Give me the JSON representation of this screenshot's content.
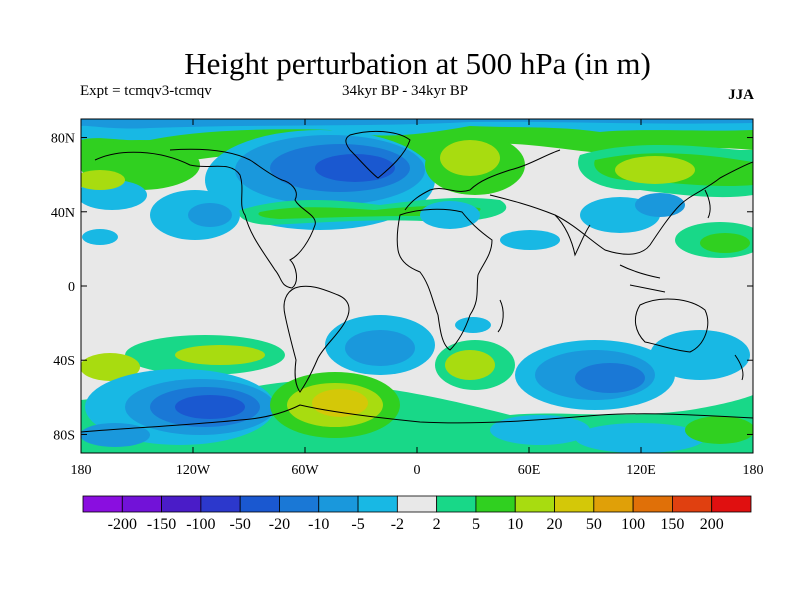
{
  "title": "Height perturbation at 500 hPa (in m)",
  "subtitle_left": "Expt = tcmqv3-tcmqv",
  "subtitle_mid": "34kyr BP - 34kyr BP",
  "subtitle_right": "JJA",
  "map": {
    "lon_range": [
      -180,
      180
    ],
    "lat_range": [
      -90,
      90
    ],
    "lat_ticks": [
      {
        "value": 80,
        "label": "80N"
      },
      {
        "value": 40,
        "label": "40N"
      },
      {
        "value": 0,
        "label": "0"
      },
      {
        "value": -40,
        "label": "40S"
      },
      {
        "value": -80,
        "label": "80S"
      }
    ],
    "lon_ticks": [
      {
        "value": -180,
        "label": "180"
      },
      {
        "value": -120,
        "label": "120W"
      },
      {
        "value": -60,
        "label": "60W"
      },
      {
        "value": 0,
        "label": "0"
      },
      {
        "value": 60,
        "label": "60E"
      },
      {
        "value": 120,
        "label": "120E"
      },
      {
        "value": 180,
        "label": "180"
      }
    ],
    "background_color": "#e8e8e8"
  },
  "colorbar": {
    "colors": [
      "#8a0ee0",
      "#7212d8",
      "#4a1cc8",
      "#2c38cc",
      "#1a58d0",
      "#1a78d6",
      "#1a98dc",
      "#18b8e4",
      "#e8e8e8",
      "#18d888",
      "#30d020",
      "#a8dc10",
      "#d4c808",
      "#e0a008",
      "#e07008",
      "#e04010",
      "#e01010"
    ],
    "labels": [
      "-200",
      "-150",
      "-100",
      "-50",
      "-20",
      "-10",
      "-5",
      "-2",
      "2",
      "5",
      "10",
      "20",
      "50",
      "100",
      "150",
      "200"
    ]
  }
}
